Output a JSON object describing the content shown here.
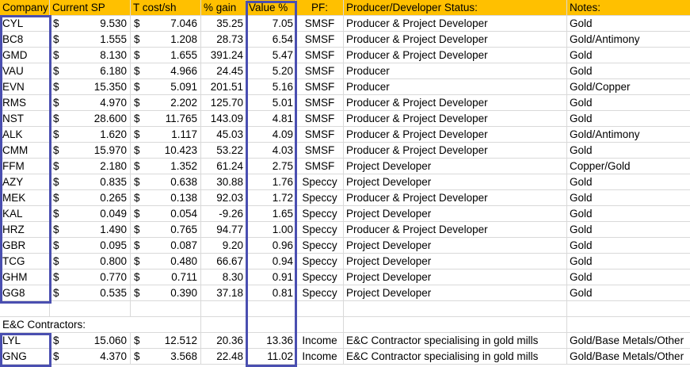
{
  "headers": {
    "company": "Company",
    "current_sp": "Current SP",
    "t_cost": "T cost/sh",
    "pct_gain": "% gain",
    "value_pct": "Value %",
    "pf": "PF:",
    "status": "Producer/Developer Status:",
    "notes": "Notes:"
  },
  "currency_symbol": "$",
  "colors": {
    "header_bg": "#ffc000",
    "box_border": "#4a4fb0",
    "gridline": "#d9d9d9"
  },
  "rows": [
    {
      "company": "CYL",
      "sp": "9.530",
      "tcost": "7.046",
      "gain": "35.25",
      "value": "7.05",
      "pf": "SMSF",
      "status": "Producer & Project Developer",
      "notes": "Gold"
    },
    {
      "company": "BC8",
      "sp": "1.555",
      "tcost": "1.208",
      "gain": "28.73",
      "value": "6.54",
      "pf": "SMSF",
      "status": "Producer & Project Developer",
      "notes": "Gold/Antimony"
    },
    {
      "company": "GMD",
      "sp": "8.130",
      "tcost": "1.655",
      "gain": "391.24",
      "value": "5.47",
      "pf": "SMSF",
      "status": "Producer & Project Developer",
      "notes": "Gold"
    },
    {
      "company": "VAU",
      "sp": "6.180",
      "tcost": "4.966",
      "gain": "24.45",
      "value": "5.20",
      "pf": "SMSF",
      "status": "Producer",
      "notes": "Gold"
    },
    {
      "company": "EVN",
      "sp": "15.350",
      "tcost": "5.091",
      "gain": "201.51",
      "value": "5.16",
      "pf": "SMSF",
      "status": "Producer",
      "notes": "Gold/Copper"
    },
    {
      "company": "RMS",
      "sp": "4.970",
      "tcost": "2.202",
      "gain": "125.70",
      "value": "5.01",
      "pf": "SMSF",
      "status": "Producer & Project Developer",
      "notes": "Gold"
    },
    {
      "company": "NST",
      "sp": "28.600",
      "tcost": "11.765",
      "gain": "143.09",
      "value": "4.81",
      "pf": "SMSF",
      "status": "Producer & Project Developer",
      "notes": "Gold"
    },
    {
      "company": "ALK",
      "sp": "1.620",
      "tcost": "1.117",
      "gain": "45.03",
      "value": "4.09",
      "pf": "SMSF",
      "status": "Producer & Project Developer",
      "notes": "Gold/Antimony"
    },
    {
      "company": "CMM",
      "sp": "15.970",
      "tcost": "10.423",
      "gain": "53.22",
      "value": "4.03",
      "pf": "SMSF",
      "status": "Producer & Project Developer",
      "notes": "Gold"
    },
    {
      "company": "FFM",
      "sp": "2.180",
      "tcost": "1.352",
      "gain": "61.24",
      "value": "2.75",
      "pf": "SMSF",
      "status": "Project Developer",
      "notes": "Copper/Gold"
    },
    {
      "company": "AZY",
      "sp": "0.835",
      "tcost": "0.638",
      "gain": "30.88",
      "value": "1.76",
      "pf": "Speccy",
      "status": "Project Developer",
      "notes": "Gold"
    },
    {
      "company": "MEK",
      "sp": "0.265",
      "tcost": "0.138",
      "gain": "92.03",
      "value": "1.72",
      "pf": "Speccy",
      "status": "Producer & Project Developer",
      "notes": "Gold"
    },
    {
      "company": "KAL",
      "sp": "0.049",
      "tcost": "0.054",
      "gain": "-9.26",
      "value": "1.65",
      "pf": "Speccy",
      "status": "Project Developer",
      "notes": "Gold"
    },
    {
      "company": "HRZ",
      "sp": "1.490",
      "tcost": "0.765",
      "gain": "94.77",
      "value": "1.00",
      "pf": "Speccy",
      "status": "Producer & Project Developer",
      "notes": "Gold"
    },
    {
      "company": "GBR",
      "sp": "0.095",
      "tcost": "0.087",
      "gain": "9.20",
      "value": "0.96",
      "pf": "Speccy",
      "status": "Project Developer",
      "notes": "Gold"
    },
    {
      "company": "TCG",
      "sp": "0.800",
      "tcost": "0.480",
      "gain": "66.67",
      "value": "0.94",
      "pf": "Speccy",
      "status": "Project Developer",
      "notes": "Gold"
    },
    {
      "company": "GHM",
      "sp": "0.770",
      "tcost": "0.711",
      "gain": "8.30",
      "value": "0.91",
      "pf": "Speccy",
      "status": "Project Developer",
      "notes": "Gold"
    },
    {
      "company": "GG8",
      "sp": "0.535",
      "tcost": "0.390",
      "gain": "37.18",
      "value": "0.81",
      "pf": "Speccy",
      "status": "Project Developer",
      "notes": "Gold"
    }
  ],
  "section_label": "E&C Contractors:",
  "contractor_rows": [
    {
      "company": "LYL",
      "sp": "15.060",
      "tcost": "12.512",
      "gain": "20.36",
      "value": "13.36",
      "pf": "Income",
      "status": "E&C Contractor specialising in gold mills",
      "notes": "Gold/Base Metals/Other"
    },
    {
      "company": "GNG",
      "sp": "4.370",
      "tcost": "3.568",
      "gain": "22.48",
      "value": "11.02",
      "pf": "Income",
      "status": "E&C Contractor specialising in gold mills",
      "notes": "Gold/Base Metals/Other"
    }
  ]
}
